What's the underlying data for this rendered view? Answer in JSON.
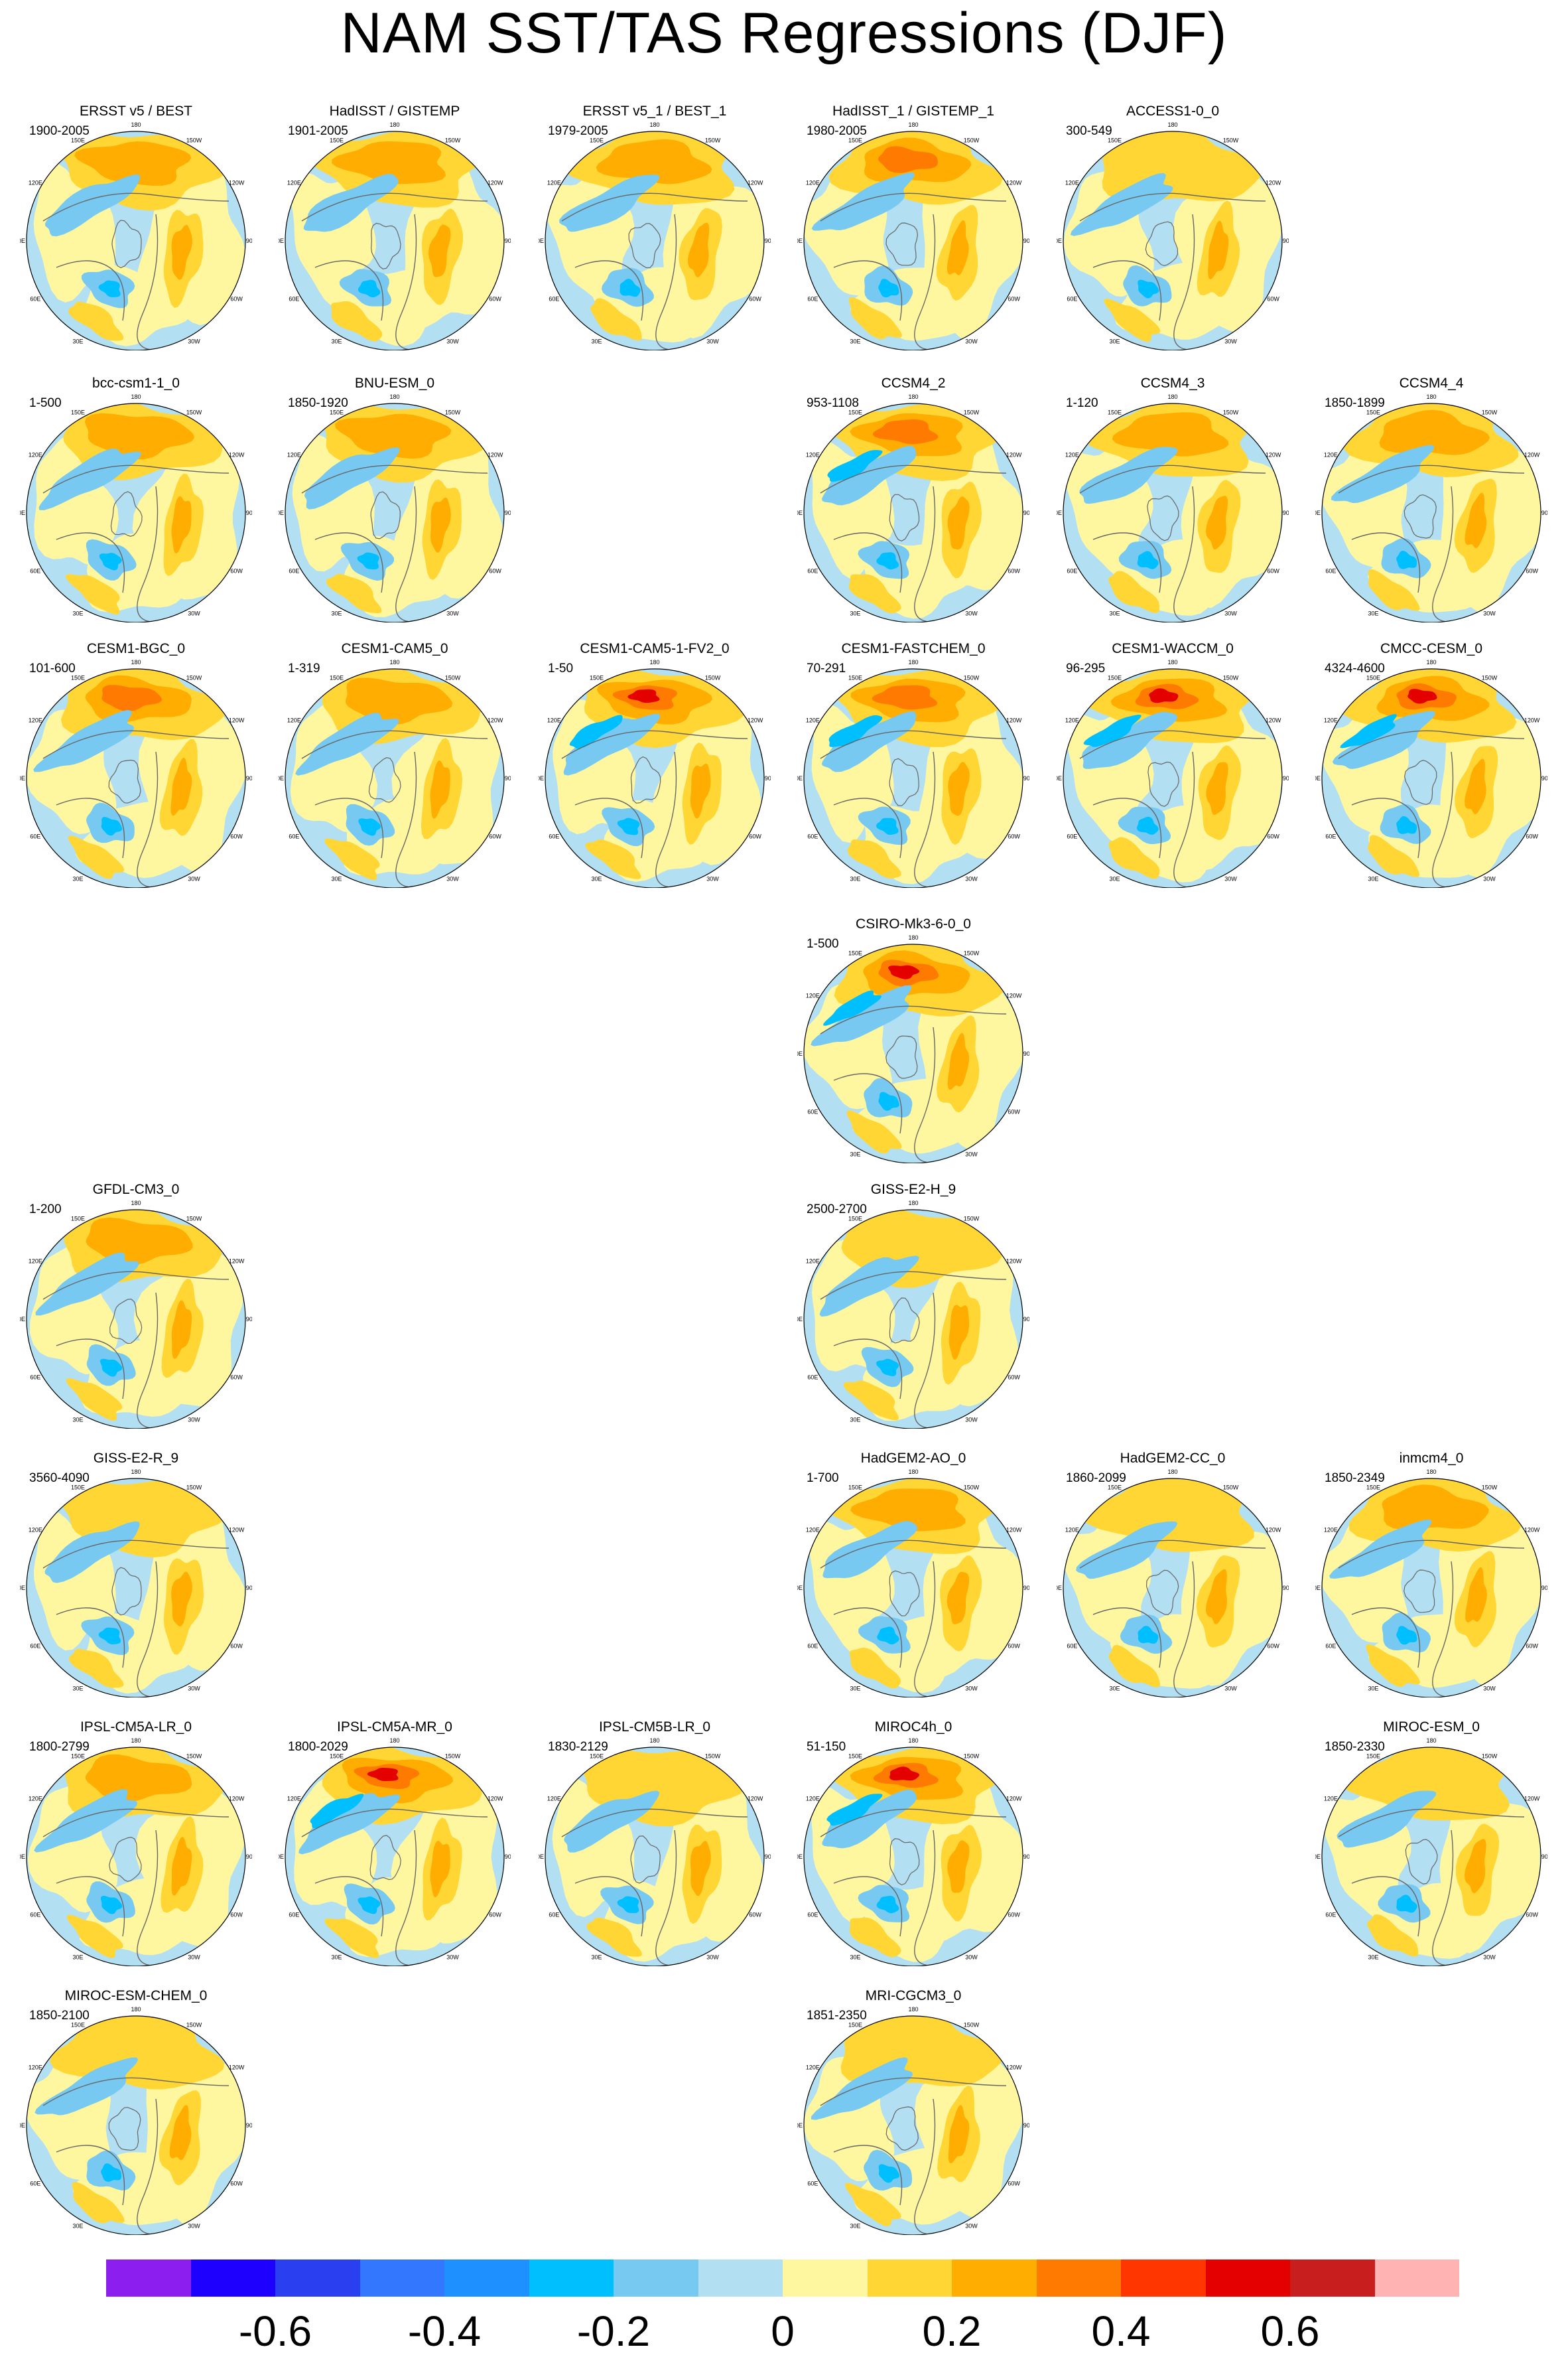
{
  "title": "NAM SST/TAS Regressions (DJF)",
  "colors": {
    "ocean_negative": "#b3dff2",
    "land_positive": "#fff7a0",
    "coast": "#666666",
    "rim": "#000000"
  },
  "chart_data": {
    "type": "heatmap",
    "title": "NAM SST/TAS Regressions (DJF)",
    "projection": "north polar stereographic",
    "longitude_labels": [
      "180",
      "150W",
      "120W",
      "90W",
      "60W",
      "30W",
      "0",
      "30E",
      "60E",
      "90E",
      "120E",
      "150E"
    ],
    "colorbar": {
      "colors": [
        "#8c1ff0",
        "#1e00ff",
        "#2a3ff0",
        "#3377ff",
        "#1e90ff",
        "#00bfff",
        "#77c9f2",
        "#b3dff2",
        "#fff7a0",
        "#ffd633",
        "#ffad00",
        "#ff7a00",
        "#ff3600",
        "#e50000",
        "#c81e1e",
        "#ffb3b3"
      ],
      "ticks": [
        -0.6,
        -0.4,
        -0.2,
        0,
        0.2,
        0.4,
        0.6
      ],
      "tick_labels": [
        "-0.6",
        "-0.4",
        "-0.2",
        "0",
        "0.2",
        "0.4",
        "0.6"
      ]
    },
    "panels": [
      {
        "name": "ERSST v5 / BEST",
        "years": "1900-2005",
        "row": 0,
        "col": 0,
        "strength": 0.55
      },
      {
        "name": "HadISST / GISTEMP",
        "years": "1901-2005",
        "row": 0,
        "col": 1,
        "strength": 0.5
      },
      {
        "name": "ERSST v5_1 / BEST_1",
        "years": "1979-2005",
        "row": 0,
        "col": 2,
        "strength": 0.6
      },
      {
        "name": "HadISST_1 / GISTEMP_1",
        "years": "1980-2005",
        "row": 0,
        "col": 3,
        "strength": 0.7
      },
      {
        "name": "ACCESS1-0_0",
        "years": "300-549",
        "row": 0,
        "col": 4,
        "strength": 0.45
      },
      {
        "name": "bcc-csm1-1_0",
        "years": "1-500",
        "row": 1,
        "col": 0,
        "strength": 0.5
      },
      {
        "name": "BNU-ESM_0",
        "years": "1850-1920",
        "row": 1,
        "col": 1,
        "strength": 0.55
      },
      {
        "name": "CCSM4_2",
        "years": "953-1108",
        "row": 1,
        "col": 3,
        "strength": 0.75
      },
      {
        "name": "CCSM4_3",
        "years": "1-120",
        "row": 1,
        "col": 4,
        "strength": 0.6
      },
      {
        "name": "CCSM4_4",
        "years": "1850-1899",
        "row": 1,
        "col": 5,
        "strength": 0.6
      },
      {
        "name": "CESM1-BGC_0",
        "years": "101-600",
        "row": 2,
        "col": 0,
        "strength": 0.7
      },
      {
        "name": "CESM1-CAM5_0",
        "years": "1-319",
        "row": 2,
        "col": 1,
        "strength": 0.65
      },
      {
        "name": "CESM1-CAM5-1-FV2_0",
        "years": "1-50",
        "row": 2,
        "col": 2,
        "strength": 0.8
      },
      {
        "name": "CESM1-FASTCHEM_0",
        "years": "70-291",
        "row": 2,
        "col": 3,
        "strength": 0.75
      },
      {
        "name": "CESM1-WACCM_0",
        "years": "96-295",
        "row": 2,
        "col": 4,
        "strength": 0.8
      },
      {
        "name": "CMCC-CESM_0",
        "years": "4324-4600",
        "row": 2,
        "col": 5,
        "strength": 0.9
      },
      {
        "name": "CSIRO-Mk3-6-0_0",
        "years": "1-500",
        "row": 3,
        "col": 3,
        "strength": 0.8
      },
      {
        "name": "GFDL-CM3_0",
        "years": "1-200",
        "row": 4,
        "col": 0,
        "strength": 0.6
      },
      {
        "name": "GISS-E2-H_9",
        "years": "2500-2700",
        "row": 4,
        "col": 3,
        "strength": 0.45
      },
      {
        "name": "GISS-E2-R_9",
        "years": "3560-4090",
        "row": 5,
        "col": 0,
        "strength": 0.35
      },
      {
        "name": "HadGEM2-AO_0",
        "years": "1-700",
        "row": 5,
        "col": 3,
        "strength": 0.55
      },
      {
        "name": "HadGEM2-CC_0",
        "years": "1860-2099",
        "row": 5,
        "col": 4,
        "strength": 0.3
      },
      {
        "name": "inmcm4_0",
        "years": "1850-2349",
        "row": 5,
        "col": 5,
        "strength": 0.55
      },
      {
        "name": "IPSL-CM5A-LR_0",
        "years": "1800-2799",
        "row": 6,
        "col": 0,
        "strength": 0.55
      },
      {
        "name": "IPSL-CM5A-MR_0",
        "years": "1800-2029",
        "row": 6,
        "col": 1,
        "strength": 0.8
      },
      {
        "name": "IPSL-CM5B-LR_0",
        "years": "1830-2129",
        "row": 6,
        "col": 2,
        "strength": 0.3
      },
      {
        "name": "MIROC4h_0",
        "years": "51-150",
        "row": 6,
        "col": 3,
        "strength": 0.8
      },
      {
        "name": "MIROC-ESM_0",
        "years": "1850-2330",
        "row": 6,
        "col": 5,
        "strength": 0.35
      },
      {
        "name": "MIROC-ESM-CHEM_0",
        "years": "1850-2100",
        "row": 7,
        "col": 0,
        "strength": 0.4
      },
      {
        "name": "MRI-CGCM3_0",
        "years": "1851-2350",
        "row": 7,
        "col": 3,
        "strength": 0.45
      }
    ]
  }
}
